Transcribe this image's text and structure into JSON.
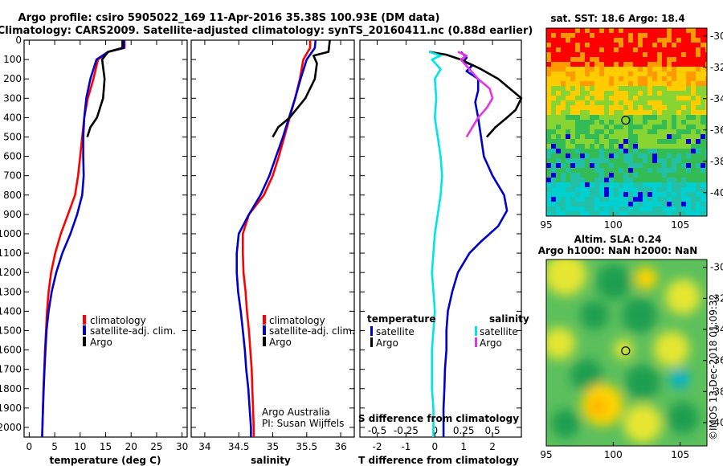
{
  "title_line1": "Argo profile: csiro 5905022_169 11-Apr-2016 35.38S 100.93E (DM data)",
  "title_line2": "Climatology: CARS2009. Satellite-adjusted climatology: synTS_20160411.nc (0.88d earlier)",
  "credit": "©IMOS 13-Dec-2018 01:09:32",
  "colors": {
    "climatology": "#ff0000",
    "satellite": "#0000cc",
    "argo": "#000000",
    "s_satellite": "#00e5e5",
    "s_argo": "#e533e5"
  },
  "chart_data": [
    {
      "type": "line",
      "xlabel": "temperature (deg C)",
      "ylabel": "",
      "xlim": [
        -1,
        31
      ],
      "ylim": [
        2050,
        0
      ],
      "xticks": [
        0,
        5,
        10,
        15,
        20,
        25,
        30
      ],
      "yticks": [
        0,
        100,
        200,
        300,
        400,
        500,
        600,
        700,
        800,
        900,
        1000,
        1100,
        1200,
        1300,
        1400,
        1500,
        1600,
        1700,
        1800,
        1900,
        2000
      ],
      "legend": [
        "climatology",
        "satellite-adj. clim.",
        "Argo"
      ],
      "series": [
        {
          "name": "climatology",
          "color": "#ff0000",
          "points": [
            [
              18.7,
              0
            ],
            [
              18.7,
              40
            ],
            [
              15.5,
              60
            ],
            [
              13.5,
              100
            ],
            [
              12.6,
              200
            ],
            [
              11.5,
              300
            ],
            [
              10.8,
              400
            ],
            [
              10.4,
              500
            ],
            [
              10.0,
              600
            ],
            [
              9.6,
              700
            ],
            [
              9.0,
              800
            ],
            [
              7.6,
              900
            ],
            [
              6.2,
              1000
            ],
            [
              5.1,
              1100
            ],
            [
              4.3,
              1200
            ],
            [
              3.8,
              1300
            ],
            [
              3.5,
              1400
            ],
            [
              3.3,
              1500
            ],
            [
              3.1,
              1600
            ],
            [
              2.95,
              1700
            ],
            [
              2.8,
              1800
            ],
            [
              2.7,
              1900
            ],
            [
              2.6,
              2000
            ],
            [
              2.55,
              2050
            ]
          ]
        },
        {
          "name": "satellite-adj. clim.",
          "color": "#0000cc",
          "points": [
            [
              18.6,
              0
            ],
            [
              18.6,
              40
            ],
            [
              15.5,
              60
            ],
            [
              13.2,
              100
            ],
            [
              12.0,
              200
            ],
            [
              11.2,
              300
            ],
            [
              10.8,
              400
            ],
            [
              10.6,
              500
            ],
            [
              10.6,
              600
            ],
            [
              10.7,
              700
            ],
            [
              10.4,
              800
            ],
            [
              9.4,
              900
            ],
            [
              8.1,
              1000
            ],
            [
              6.5,
              1100
            ],
            [
              5.3,
              1200
            ],
            [
              4.4,
              1300
            ],
            [
              3.8,
              1400
            ],
            [
              3.4,
              1500
            ],
            [
              3.2,
              1600
            ],
            [
              3.0,
              1700
            ],
            [
              2.85,
              1800
            ],
            [
              2.7,
              1900
            ],
            [
              2.6,
              2000
            ],
            [
              2.55,
              2050
            ]
          ]
        },
        {
          "name": "Argo",
          "color": "#000000",
          "points": [
            [
              18.3,
              0
            ],
            [
              18.3,
              40
            ],
            [
              15.5,
              60
            ],
            [
              14.3,
              100
            ],
            [
              14.8,
              200
            ],
            [
              14.5,
              300
            ],
            [
              13.3,
              400
            ],
            [
              12.0,
              450
            ],
            [
              11.4,
              500
            ]
          ]
        }
      ]
    },
    {
      "type": "line",
      "xlabel": "salinity",
      "xlim": [
        33.8,
        36.2
      ],
      "ylim": [
        2050,
        0
      ],
      "xticks": [
        34,
        34.5,
        35,
        35.5,
        36
      ],
      "legend": [
        "climatology",
        "satellite-adj. clim.",
        "Argo"
      ],
      "annotations": [
        "Argo Australia",
        "PI: Susan Wijffels"
      ],
      "series": [
        {
          "name": "climatology",
          "color": "#ff0000",
          "points": [
            [
              35.55,
              0
            ],
            [
              35.55,
              40
            ],
            [
              35.45,
              100
            ],
            [
              35.4,
              200
            ],
            [
              35.33,
              300
            ],
            [
              35.25,
              400
            ],
            [
              35.17,
              500
            ],
            [
              35.09,
              600
            ],
            [
              35.0,
              700
            ],
            [
              34.87,
              800
            ],
            [
              34.65,
              900
            ],
            [
              34.56,
              1000
            ],
            [
              34.56,
              1100
            ],
            [
              34.57,
              1200
            ],
            [
              34.6,
              1300
            ],
            [
              34.62,
              1400
            ],
            [
              34.65,
              1500
            ],
            [
              34.67,
              1600
            ],
            [
              34.69,
              1700
            ],
            [
              34.7,
              1800
            ],
            [
              34.71,
              1900
            ],
            [
              34.72,
              2000
            ],
            [
              34.72,
              2050
            ]
          ]
        },
        {
          "name": "satellite-adj. clim.",
          "color": "#0000cc",
          "points": [
            [
              35.63,
              0
            ],
            [
              35.62,
              40
            ],
            [
              35.5,
              100
            ],
            [
              35.41,
              200
            ],
            [
              35.33,
              300
            ],
            [
              35.24,
              400
            ],
            [
              35.15,
              500
            ],
            [
              35.05,
              600
            ],
            [
              34.95,
              700
            ],
            [
              34.82,
              800
            ],
            [
              34.65,
              900
            ],
            [
              34.5,
              1000
            ],
            [
              34.47,
              1100
            ],
            [
              34.47,
              1200
            ],
            [
              34.49,
              1300
            ],
            [
              34.53,
              1400
            ],
            [
              34.56,
              1500
            ],
            [
              34.59,
              1600
            ],
            [
              34.61,
              1700
            ],
            [
              34.64,
              1800
            ],
            [
              34.66,
              1900
            ],
            [
              34.68,
              2000
            ],
            [
              34.68,
              2050
            ]
          ]
        },
        {
          "name": "Argo",
          "color": "#000000",
          "points": [
            [
              35.84,
              0
            ],
            [
              35.82,
              60
            ],
            [
              35.6,
              80
            ],
            [
              35.65,
              120
            ],
            [
              35.62,
              200
            ],
            [
              35.48,
              300
            ],
            [
              35.25,
              400
            ],
            [
              35.08,
              450
            ],
            [
              35.0,
              500
            ]
          ]
        }
      ]
    },
    {
      "type": "line",
      "xlabel": "T difference from climatology",
      "xlabel_top": "S difference from climatology",
      "xlim": [
        -2.6,
        3.0
      ],
      "ylim": [
        2050,
        0
      ],
      "xticks": [
        -2,
        -1,
        0,
        1,
        2
      ],
      "xtick_labels": [
        "-2",
        "-1",
        "0",
        "1",
        "2"
      ],
      "s_ticks": [
        "-0.5",
        "-0.25",
        "0",
        "0.25",
        "0.5"
      ],
      "legend_groups": {
        "temperature": [
          "satellite",
          "Argo"
        ],
        "salinity": [
          "satellite",
          "Argo"
        ]
      },
      "series": [
        {
          "name": "T satellite",
          "color": "#0000cc",
          "points": [
            [
              0.9,
              60
            ],
            [
              1.1,
              90
            ],
            [
              1.0,
              110
            ],
            [
              1.3,
              130
            ],
            [
              1.1,
              160
            ],
            [
              1.5,
              200
            ],
            [
              1.5,
              260
            ],
            [
              1.4,
              320
            ],
            [
              1.5,
              400
            ],
            [
              1.6,
              500
            ],
            [
              1.7,
              600
            ],
            [
              2.0,
              700
            ],
            [
              2.4,
              800
            ],
            [
              2.5,
              880
            ],
            [
              2.2,
              960
            ],
            [
              1.6,
              1040
            ],
            [
              1.2,
              1100
            ],
            [
              0.8,
              1200
            ],
            [
              0.6,
              1300
            ],
            [
              0.45,
              1400
            ],
            [
              0.4,
              1500
            ],
            [
              0.4,
              1600
            ],
            [
              0.35,
              1700
            ],
            [
              0.33,
              1800
            ],
            [
              0.3,
              1900
            ],
            [
              0.3,
              2000
            ],
            [
              0.3,
              2050
            ]
          ]
        },
        {
          "name": "T Argo",
          "color": "#000000",
          "points": [
            [
              -0.2,
              60
            ],
            [
              0.4,
              75
            ],
            [
              0.9,
              100
            ],
            [
              1.6,
              150
            ],
            [
              2.2,
              200
            ],
            [
              2.6,
              250
            ],
            [
              3.0,
              300
            ],
            [
              2.8,
              360
            ],
            [
              2.5,
              400
            ],
            [
              2.1,
              450
            ],
            [
              1.8,
              500
            ]
          ]
        },
        {
          "name": "S satellite",
          "color": "#00e5e5",
          "points": [
            [
              -0.2,
              60
            ],
            [
              0.2,
              80
            ],
            [
              -0.1,
              100
            ],
            [
              0.2,
              150
            ],
            [
              0.0,
              200
            ],
            [
              0.05,
              300
            ],
            [
              0.0,
              400
            ],
            [
              0.1,
              500
            ],
            [
              0.2,
              600
            ],
            [
              0.25,
              700
            ],
            [
              0.2,
              800
            ],
            [
              0.1,
              900
            ],
            [
              0.0,
              1000
            ],
            [
              -0.05,
              1100
            ],
            [
              -0.1,
              1200
            ],
            [
              -0.05,
              1300
            ],
            [
              0.0,
              1400
            ],
            [
              -0.05,
              1500
            ],
            [
              -0.1,
              1600
            ],
            [
              -0.1,
              1700
            ],
            [
              -0.1,
              1800
            ],
            [
              -0.05,
              1900
            ],
            [
              -0.05,
              2000
            ],
            [
              -0.05,
              2050
            ]
          ]
        },
        {
          "name": "S Argo",
          "color": "#e533e5",
          "points": [
            [
              0.8,
              60
            ],
            [
              1.1,
              80
            ],
            [
              0.9,
              100
            ],
            [
              1.2,
              150
            ],
            [
              1.5,
              200
            ],
            [
              1.9,
              250
            ],
            [
              2.0,
              300
            ],
            [
              1.8,
              350
            ],
            [
              1.5,
              400
            ],
            [
              1.3,
              450
            ],
            [
              1.1,
              500
            ]
          ]
        }
      ]
    },
    {
      "type": "heatmap",
      "title": "sat. SST: 18.6 Argo: 18.4",
      "xlim": [
        95,
        107
      ],
      "ylim": [
        -41.5,
        -29.5
      ],
      "xticks": [
        "95",
        "100",
        "105"
      ],
      "yticks": [
        "-30",
        "-32",
        "-34",
        "-36",
        "-38",
        "-40"
      ],
      "marker": [
        100.93,
        -35.38
      ]
    },
    {
      "type": "heatmap",
      "title": "Altim. SLA: 0.24",
      "subtitle": "Argo h1000: NaN h2000: NaN",
      "xlim": [
        95,
        107
      ],
      "ylim": [
        -41.5,
        -29.5
      ],
      "xticks": [
        "95",
        "100",
        "105"
      ],
      "yticks": [
        "-30",
        "-32",
        "-34",
        "-36",
        "-38",
        "-40"
      ],
      "marker": [
        100.93,
        -35.38
      ]
    }
  ]
}
